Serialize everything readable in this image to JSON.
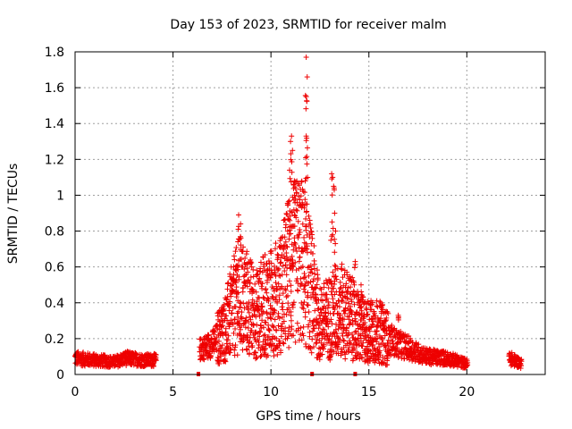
{
  "chart_data": {
    "type": "scatter",
    "title": "Day 153 of 2023, SRMTID for receiver malm",
    "xlabel": "GPS time / hours",
    "ylabel": "SRMTID / TECUs",
    "xlim": [
      0,
      24
    ],
    "ylim": [
      0,
      1.8
    ],
    "xticks": [
      0,
      5,
      10,
      15,
      20
    ],
    "yticks": [
      0,
      0.2,
      0.4,
      0.6,
      0.8,
      1,
      1.2,
      1.4,
      1.6,
      1.8
    ],
    "xtick_labels": [
      "0",
      "5",
      "10",
      "15",
      "20"
    ],
    "ytick_labels": [
      "0",
      "0.2",
      "0.4",
      "0.6",
      "0.8",
      "1",
      "1.2",
      "1.4",
      "1.6",
      "1.8"
    ],
    "grid": true,
    "marker": "+",
    "series": [
      {
        "name": "malm",
        "color": "#ee0000",
        "envelope": [
          {
            "x": 0.0,
            "y": 0.09
          },
          {
            "x": 1.0,
            "y": 0.08
          },
          {
            "x": 2.0,
            "y": 0.07
          },
          {
            "x": 2.6,
            "y": 0.09
          },
          {
            "x": 3.5,
            "y": 0.08
          },
          {
            "x": 4.1,
            "y": 0.08
          },
          {
            "x": 6.4,
            "y": 0.14
          },
          {
            "x": 7.0,
            "y": 0.17
          },
          {
            "x": 7.6,
            "y": 0.24
          },
          {
            "x": 8.0,
            "y": 0.35
          },
          {
            "x": 8.4,
            "y": 0.45
          },
          {
            "x": 8.8,
            "y": 0.4
          },
          {
            "x": 9.2,
            "y": 0.33
          },
          {
            "x": 9.6,
            "y": 0.38
          },
          {
            "x": 10.0,
            "y": 0.4
          },
          {
            "x": 10.5,
            "y": 0.45
          },
          {
            "x": 11.0,
            "y": 0.6
          },
          {
            "x": 11.5,
            "y": 0.65
          },
          {
            "x": 12.0,
            "y": 0.5
          },
          {
            "x": 12.5,
            "y": 0.28
          },
          {
            "x": 13.0,
            "y": 0.32
          },
          {
            "x": 13.5,
            "y": 0.36
          },
          {
            "x": 14.0,
            "y": 0.33
          },
          {
            "x": 14.5,
            "y": 0.26
          },
          {
            "x": 15.0,
            "y": 0.24
          },
          {
            "x": 15.5,
            "y": 0.24
          },
          {
            "x": 16.0,
            "y": 0.2
          },
          {
            "x": 16.5,
            "y": 0.17
          },
          {
            "x": 17.0,
            "y": 0.15
          },
          {
            "x": 17.5,
            "y": 0.12
          },
          {
            "x": 18.0,
            "y": 0.1
          },
          {
            "x": 19.0,
            "y": 0.09
          },
          {
            "x": 20.0,
            "y": 0.06
          },
          {
            "x": 22.2,
            "y": 0.09
          },
          {
            "x": 22.8,
            "y": 0.06
          }
        ],
        "gaps": [
          [
            4.15,
            6.35
          ],
          [
            20.05,
            22.15
          ]
        ],
        "peaks": [
          {
            "x": 8.2,
            "y": 0.6
          },
          {
            "x": 8.35,
            "y": 0.89
          },
          {
            "x": 8.45,
            "y": 0.84
          },
          {
            "x": 10.85,
            "y": 0.8
          },
          {
            "x": 10.95,
            "y": 1.14
          },
          {
            "x": 11.0,
            "y": 1.3
          },
          {
            "x": 11.05,
            "y": 1.33
          },
          {
            "x": 11.1,
            "y": 1.25
          },
          {
            "x": 11.2,
            "y": 1.0
          },
          {
            "x": 11.6,
            "y": 0.95
          },
          {
            "x": 11.75,
            "y": 1.08
          },
          {
            "x": 11.8,
            "y": 1.77
          },
          {
            "x": 11.85,
            "y": 1.66
          },
          {
            "x": 11.8,
            "y": 1.55
          },
          {
            "x": 11.8,
            "y": 1.33
          },
          {
            "x": 13.1,
            "y": 1.12
          },
          {
            "x": 13.15,
            "y": 1.1
          },
          {
            "x": 13.2,
            "y": 1.05
          },
          {
            "x": 13.25,
            "y": 0.9
          },
          {
            "x": 13.3,
            "y": 0.8
          },
          {
            "x": 14.3,
            "y": 0.63
          },
          {
            "x": 14.6,
            "y": 0.5
          },
          {
            "x": 16.5,
            "y": 0.33
          }
        ],
        "zero_markers": [
          6.3,
          12.1,
          14.3
        ]
      }
    ]
  }
}
